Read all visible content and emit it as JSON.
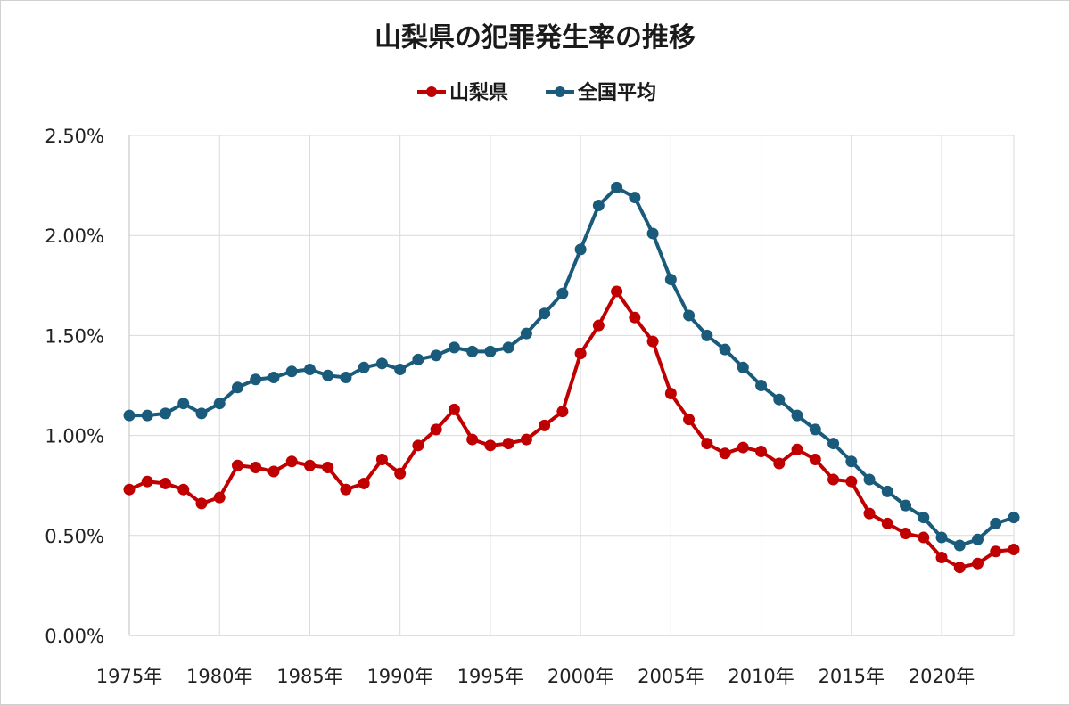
{
  "chart_data": {
    "type": "line",
    "title": "山梨県の犯罪発生率の推移",
    "xlabel": "",
    "ylabel": "",
    "ylim": [
      0,
      0.025
    ],
    "yticks": [
      "0.00%",
      "0.50%",
      "1.00%",
      "1.50%",
      "2.00%",
      "2.50%"
    ],
    "xticks": [
      "1975年",
      "1980年",
      "1985年",
      "1990年",
      "1995年",
      "2000年",
      "2005年",
      "2010年",
      "2015年",
      "2020年"
    ],
    "legend_position": "top-center",
    "grid": true,
    "x": [
      1975,
      1976,
      1977,
      1978,
      1979,
      1980,
      1981,
      1982,
      1983,
      1984,
      1985,
      1986,
      1987,
      1988,
      1989,
      1990,
      1991,
      1992,
      1993,
      1994,
      1995,
      1996,
      1997,
      1998,
      1999,
      2000,
      2001,
      2002,
      2003,
      2004,
      2005,
      2006,
      2007,
      2008,
      2009,
      2010,
      2011,
      2012,
      2013,
      2014,
      2015,
      2016,
      2017,
      2018,
      2019,
      2020,
      2021,
      2022,
      2023,
      2024
    ],
    "series": [
      {
        "name": "山梨県",
        "color": "#c00000",
        "values": [
          0.0073,
          0.0077,
          0.0076,
          0.0073,
          0.0066,
          0.0069,
          0.0085,
          0.0084,
          0.0082,
          0.0087,
          0.0085,
          0.0084,
          0.0073,
          0.0076,
          0.0088,
          0.0081,
          0.0095,
          0.0103,
          0.0113,
          0.0098,
          0.0095,
          0.0096,
          0.0098,
          0.0105,
          0.0112,
          0.0141,
          0.0155,
          0.0172,
          0.0159,
          0.0147,
          0.0121,
          0.0108,
          0.0096,
          0.0091,
          0.0094,
          0.0092,
          0.0086,
          0.0093,
          0.0088,
          0.0078,
          0.0077,
          0.0061,
          0.0056,
          0.0051,
          0.0049,
          0.0039,
          0.0034,
          0.0036,
          0.0042,
          0.0043
        ]
      },
      {
        "name": "全国平均",
        "color": "#1a5a7a",
        "values": [
          0.011,
          0.011,
          0.0111,
          0.0116,
          0.0111,
          0.0116,
          0.0124,
          0.0128,
          0.0129,
          0.0132,
          0.0133,
          0.013,
          0.0129,
          0.0134,
          0.0136,
          0.0133,
          0.0138,
          0.014,
          0.0144,
          0.0142,
          0.0142,
          0.0144,
          0.0151,
          0.0161,
          0.0171,
          0.0193,
          0.0215,
          0.0224,
          0.0219,
          0.0201,
          0.0178,
          0.016,
          0.015,
          0.0143,
          0.0134,
          0.0125,
          0.0118,
          0.011,
          0.0103,
          0.0096,
          0.0087,
          0.0078,
          0.0072,
          0.0065,
          0.0059,
          0.0049,
          0.0045,
          0.0048,
          0.0056,
          0.0059
        ]
      }
    ]
  }
}
